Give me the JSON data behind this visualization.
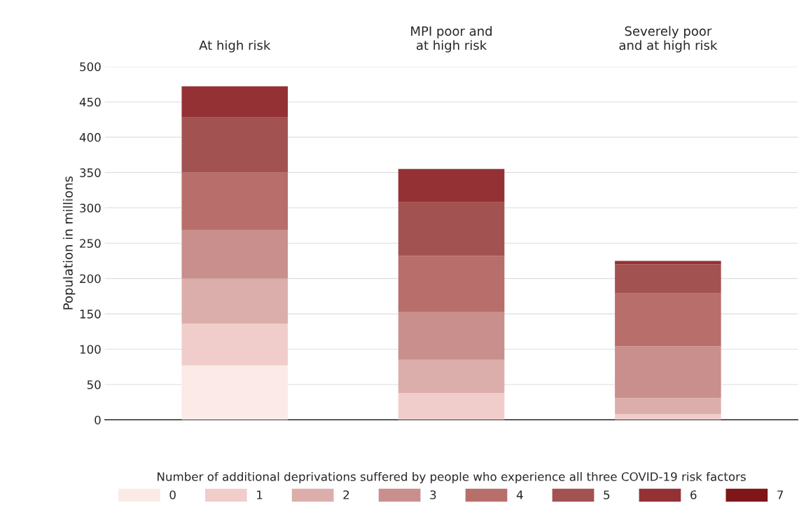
{
  "chart_data": {
    "type": "bar",
    "stacked": true,
    "ylabel": "Population in millions",
    "legend_title": "Number of additional deprivations suffered by people who experience all three COVID-19 risk factors",
    "categories": [
      "At high risk",
      "MPI poor and\nat high risk",
      "Severely poor\nand at high risk"
    ],
    "series": [
      {
        "name": "0",
        "color": "#fbeae7",
        "values": [
          77,
          null,
          null
        ]
      },
      {
        "name": "1",
        "color": "#f0cdcb",
        "values": [
          59,
          38,
          8
        ]
      },
      {
        "name": "2",
        "color": "#dcaeab",
        "values": [
          64,
          47,
          23
        ]
      },
      {
        "name": "3",
        "color": "#c98f8c",
        "values": [
          69,
          68,
          73
        ]
      },
      {
        "name": "4",
        "color": "#b86e6b",
        "values": [
          81,
          79,
          75
        ]
      },
      {
        "name": "5",
        "color": "#a35252",
        "values": [
          78,
          76,
          41
        ]
      },
      {
        "name": "6",
        "color": "#943135",
        "values": [
          44,
          47,
          5
        ]
      },
      {
        "name": "7",
        "color": "#7f1618",
        "values": [
          null,
          null,
          null
        ]
      }
    ],
    "ylim": [
      0,
      500
    ],
    "yticks": [
      0,
      50,
      100,
      150,
      200,
      250,
      300,
      350,
      400,
      450,
      500
    ],
    "grid": "y",
    "legend": "bottom"
  }
}
